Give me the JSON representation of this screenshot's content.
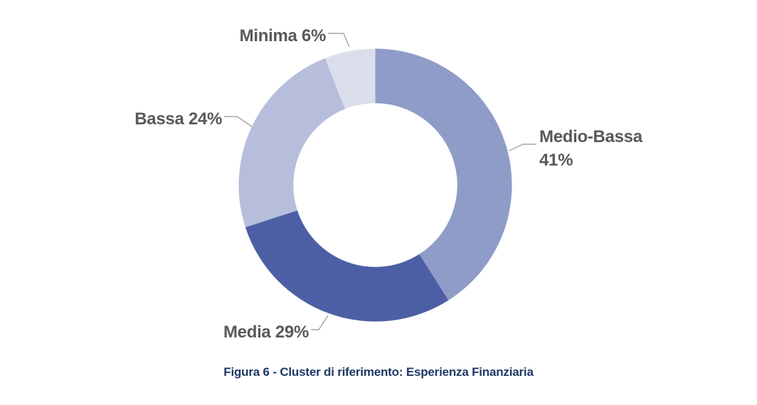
{
  "figure": {
    "caption": "Figura 6 - Cluster di riferimento: Esperienza Finanziaria"
  },
  "colors": {
    "background": "#FFFFFF",
    "label_text": "#595959",
    "caption_text": "#1F3864",
    "leader_line": "#A6A6A6"
  },
  "chart_data": {
    "type": "pie",
    "subtype": "donut",
    "categories": [
      "Medio-Bassa",
      "Media",
      "Bassa",
      "Minima"
    ],
    "values": [
      41,
      29,
      24,
      6
    ],
    "unit": "%",
    "colors": [
      "#8F9CC8",
      "#4D5FA4",
      "#B7BEDC",
      "#DBDFEC"
    ],
    "labels": [
      {
        "lines": [
          "Medio-Bassa",
          "41%"
        ]
      },
      {
        "lines": [
          "Media 29%"
        ]
      },
      {
        "lines": [
          "Bassa 24%"
        ]
      },
      {
        "lines": [
          "Minima 6%"
        ]
      }
    ],
    "start_angle_deg": 0,
    "direction": "clockwise",
    "inner_radius_ratio": 0.6,
    "legend": "none",
    "title": ""
  }
}
